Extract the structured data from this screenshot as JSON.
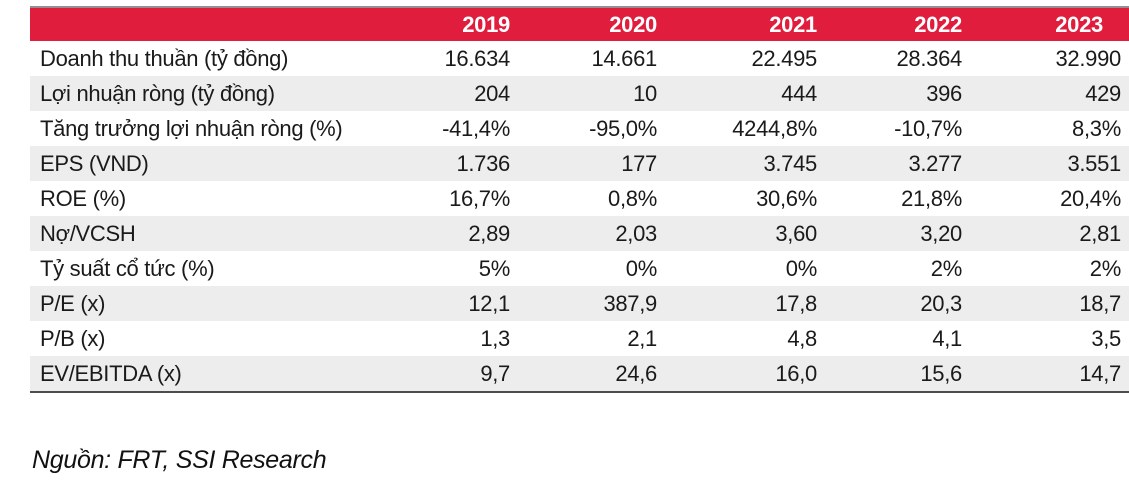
{
  "table": {
    "columns": [
      "2019",
      "2020",
      "2021",
      "2022",
      "2023"
    ],
    "rows": [
      {
        "label": "Doanh thu thuần (tỷ đồng)",
        "values": [
          "16.634",
          "14.661",
          "22.495",
          "28.364",
          "32.990"
        ]
      },
      {
        "label": "Lợi nhuận ròng (tỷ đồng)",
        "values": [
          "204",
          "10",
          "444",
          "396",
          "429"
        ]
      },
      {
        "label": "Tăng trưởng lợi nhuận ròng (%)",
        "values": [
          "-41,4%",
          "-95,0%",
          "4244,8%",
          "-10,7%",
          "8,3%"
        ]
      },
      {
        "label": "EPS (VND)",
        "values": [
          "1.736",
          "177",
          "3.745",
          "3.277",
          "3.551"
        ]
      },
      {
        "label": "ROE (%)",
        "values": [
          "16,7%",
          "0,8%",
          "30,6%",
          "21,8%",
          "20,4%"
        ]
      },
      {
        "label": "Nợ/VCSH",
        "values": [
          "2,89",
          "2,03",
          "3,60",
          "3,20",
          "2,81"
        ]
      },
      {
        "label": "Tỷ suất cổ tức (%)",
        "values": [
          "5%",
          "0%",
          "0%",
          "2%",
          "2%"
        ]
      },
      {
        "label": "P/E (x)",
        "values": [
          "12,1",
          "387,9",
          "17,8",
          "20,3",
          "18,7"
        ]
      },
      {
        "label": "P/B (x)",
        "values": [
          "1,3",
          "2,1",
          "4,8",
          "4,1",
          "3,5"
        ]
      },
      {
        "label": "EV/EBITDA (x)",
        "values": [
          "9,7",
          "24,6",
          "16,0",
          "15,6",
          "14,7"
        ]
      }
    ]
  },
  "footer": {
    "source_note": "Nguồn: FRT, SSI Research"
  },
  "colors": {
    "header_red": "#e11d3d",
    "row_stripe": "#ededed",
    "top_rule": "#8e9093",
    "bottom_rule": "#4c4d4f",
    "header_text": "#ffffff",
    "body_text": "#1a1a1a"
  }
}
